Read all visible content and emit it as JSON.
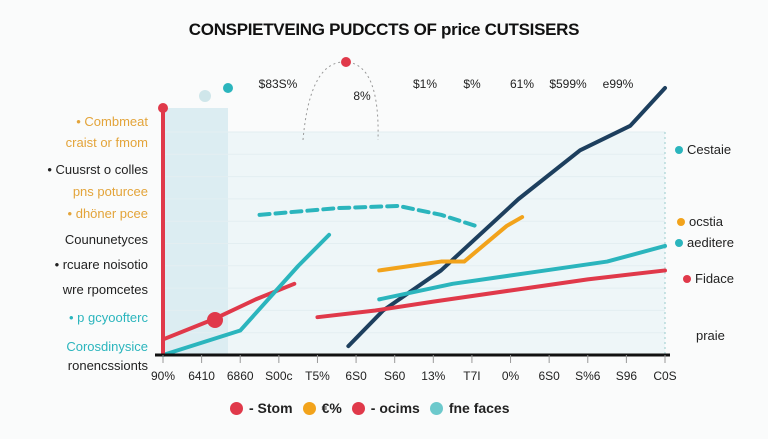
{
  "chart_data": {
    "type": "line",
    "title": "CONSPIETVEING PUDCCTS OF price CUTSISERS",
    "x_tick_labels": [
      "90%",
      "6410",
      "6860",
      "S00c",
      "T5%",
      "6S0",
      "S60",
      "13%",
      "T7I",
      "0%",
      "6S0",
      "S%6",
      "S96",
      "C0S"
    ],
    "top_labels": [
      "$83S%",
      "8%",
      "$1%",
      "$%",
      "61%",
      "$599%",
      "e99%"
    ],
    "ylim": [
      0,
      120
    ],
    "grid": true,
    "legend_placement": "bottom",
    "series": [
      {
        "color": "#1d3f5e",
        "x": [
          4.8,
          5.7,
          7.2,
          9.2,
          10.8,
          12.1,
          13
        ],
        "y": [
          4,
          20,
          38,
          70,
          92,
          103,
          120
        ]
      },
      {
        "color": "#e0394a",
        "x": [
          0,
          1.3,
          2.4,
          3.4
        ],
        "y": [
          7,
          16,
          25,
          32
        ]
      },
      {
        "color": "#e0394a",
        "x": [
          4,
          5.5,
          7,
          9,
          11,
          13
        ],
        "y": [
          17,
          20,
          24,
          29,
          34,
          38
        ]
      },
      {
        "color": "#f2a31b",
        "x": [
          5.6,
          7.2,
          7.8,
          8.9,
          9.3
        ],
        "y": [
          38,
          42,
          42,
          58,
          62
        ]
      },
      {
        "color": "#2bb5bd",
        "x": [
          0,
          2,
          3.5,
          4.3
        ],
        "y": [
          0,
          11,
          40,
          54
        ]
      },
      {
        "color": "#2bb5bd",
        "dashed": true,
        "x": [
          2.5,
          4.5,
          6.1,
          7.2,
          8.1
        ],
        "y": [
          63,
          66,
          67,
          63,
          58
        ]
      },
      {
        "color": "#2bb5bd",
        "x": [
          5.6,
          7.5,
          9.5,
          11.5,
          13
        ],
        "y": [
          25,
          32,
          37,
          42,
          49
        ]
      }
    ],
    "left_labels": [
      {
        "text": "Combmeat",
        "color": "#e3a43a"
      },
      {
        "text": "craist or fmom",
        "color": "#e3a43a"
      },
      {
        "text": "Cuusrst o colles",
        "color": "#222222"
      },
      {
        "text": "pns poturcee",
        "color": "#e3a43a"
      },
      {
        "text": "dhöner pcee",
        "color": "#e3a43a"
      },
      {
        "text": "Coununetyces",
        "color": "#222222"
      },
      {
        "text": "rcuare noisotio",
        "color": "#222222"
      },
      {
        "text": "wre rpomcetes",
        "color": "#222222"
      },
      {
        "text": "p gcyoofterc",
        "color": "#2bb5bd"
      },
      {
        "text": "Corosdinysice",
        "color": "#2bb5bd"
      },
      {
        "text": "ronencssionts",
        "color": "#222222"
      }
    ],
    "right_labels": [
      {
        "text": "Cestaie",
        "color": "#222222"
      },
      {
        "text": "ocstia",
        "color": "#222222"
      },
      {
        "text": "aeditere",
        "color": "#222222"
      },
      {
        "text": "Fidace",
        "color": "#222222"
      },
      {
        "text": "praie",
        "color": "#222222"
      }
    ],
    "legend": [
      {
        "text": "- Stom",
        "color": "#e0394a"
      },
      {
        "text": "€%",
        "color": "#f2a31b"
      },
      {
        "text": "- ocims",
        "color": "#e0394a"
      },
      {
        "text": "fne faces",
        "color": "#6cc9cc"
      }
    ]
  }
}
